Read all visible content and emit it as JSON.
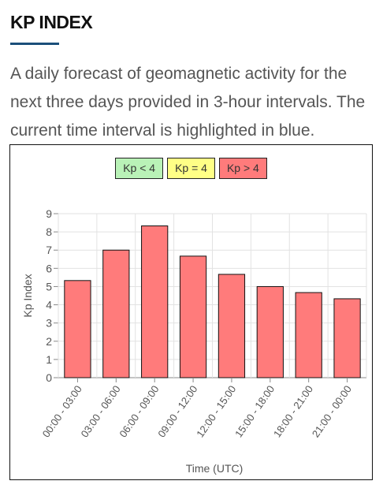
{
  "page": {
    "title": "KP INDEX",
    "description": "A daily forecast of geomagnetic activity for the next three days provided in 3-hour intervals. The current time interval is highlighted in blue."
  },
  "legend": [
    {
      "label": "Kp < 4",
      "color": "#b9f2b7"
    },
    {
      "label": "Kp = 4",
      "color": "#ffff86"
    },
    {
      "label": "Kp > 4",
      "color": "#ff7b7b"
    }
  ],
  "chart_data": {
    "type": "bar",
    "categories": [
      "00:00 - 03:00",
      "03:00 - 06:00",
      "06:00 - 09:00",
      "09:00 - 12:00",
      "12:00 - 15:00",
      "15:00 - 18:00",
      "18:00 - 21:00",
      "21:00 - 00:00"
    ],
    "values": [
      5.33,
      7.0,
      8.33,
      6.67,
      5.67,
      5.0,
      4.67,
      4.33
    ],
    "xlabel": "Time (UTC)",
    "ylabel": "Kp Index",
    "ylim": [
      0,
      9
    ],
    "yticks": [
      "0",
      "1",
      "2",
      "3",
      "4",
      "5",
      "6",
      "7",
      "8",
      "9"
    ],
    "grid": true,
    "legend_position": "top-center",
    "bar_color": "#ff7b7b",
    "bar_border_color": "#111111"
  }
}
